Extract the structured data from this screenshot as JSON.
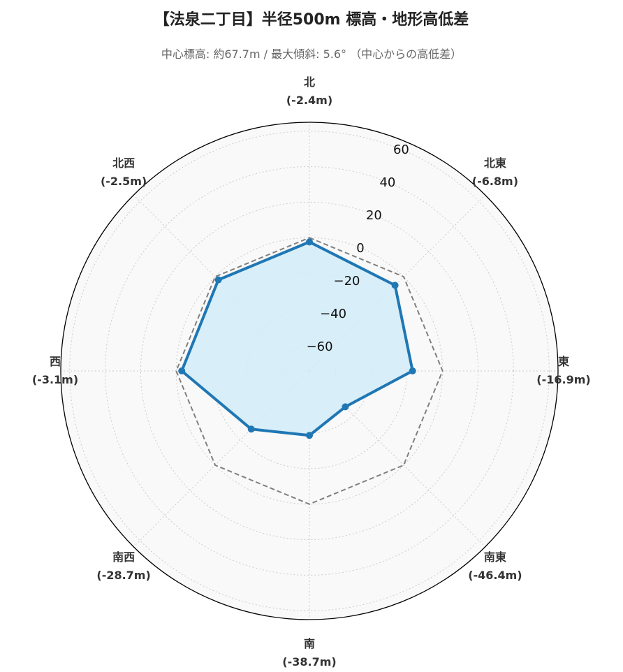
{
  "title": "【法泉二丁目】半径500m 標高・地形高低差",
  "subtitle": "中心標高: 約67.7m / 最大傾斜: 5.6°  （中心からの高低差）",
  "colors": {
    "series": "#1f77b4",
    "series_fill": "#d4ecf7",
    "reference": "#808080",
    "background": "#f9f9f9",
    "grid": "#cccccc",
    "outer_ring": "#000000"
  },
  "chart_data": {
    "type": "radar",
    "rlim": [
      -75,
      65
    ],
    "rticks": [
      -60,
      -40,
      -20,
      0,
      20,
      40,
      60
    ],
    "rtick_labels": [
      "−60",
      "−40",
      "−20",
      "0",
      "20",
      "40",
      "60"
    ],
    "grid": true,
    "directions": [
      {
        "name": "北",
        "value_label": "(-2.4m)"
      },
      {
        "name": "北東",
        "value_label": "(-6.8m)"
      },
      {
        "name": "東",
        "value_label": "(-16.9m)"
      },
      {
        "name": "南東",
        "value_label": "(-46.4m)"
      },
      {
        "name": "南",
        "value_label": "(-38.7m)"
      },
      {
        "name": "南西",
        "value_label": "(-28.7m)"
      },
      {
        "name": "西",
        "value_label": "(-3.1m)"
      },
      {
        "name": "北西",
        "value_label": "(-2.5m)"
      }
    ],
    "series": [
      {
        "values": [
          -2.4,
          -6.8,
          -16.9,
          -46.4,
          -38.7,
          -28.7,
          -3.1,
          -2.5
        ]
      }
    ],
    "reference_line": {
      "value": 0,
      "style": "dashed"
    }
  }
}
